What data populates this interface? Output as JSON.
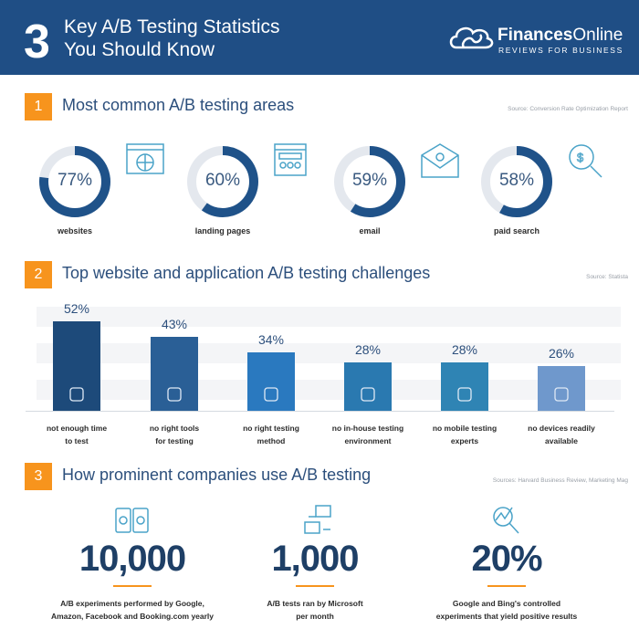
{
  "header": {
    "number": "3",
    "title_line1": "Key A/B Testing Statistics",
    "title_line2": "You Should Know",
    "logo_bold": "Finances",
    "logo_light": "Online",
    "logo_sub": "REVIEWS FOR BUSINESS"
  },
  "section1": {
    "badge": "1",
    "title": "Most common A/B testing areas",
    "source": "Source: Conversion Rate Optimization Report",
    "items": [
      {
        "pct": "77%",
        "value": 77,
        "label": "websites",
        "icon": "globe-browser-icon"
      },
      {
        "pct": "60%",
        "value": 60,
        "label": "landing pages",
        "icon": "webpage-layout-icon"
      },
      {
        "pct": "59%",
        "value": 59,
        "label": "email",
        "icon": "email-envelope-icon"
      },
      {
        "pct": "58%",
        "value": 58,
        "label": "paid search",
        "icon": "dollar-search-icon"
      }
    ]
  },
  "section2": {
    "badge": "2",
    "title": "Top website and application A/B testing challenges",
    "source": "Source: Statista"
  },
  "chart_data": {
    "type": "bar",
    "title": "Top website and application A/B testing challenges",
    "ylabel": "",
    "xlabel": "",
    "ylim": [
      0,
      60
    ],
    "categories": [
      "not enough time to test",
      "no right tools for testing",
      "no right testing method",
      "no in-house testing environment",
      "no mobile testing experts",
      "no devices readily available"
    ],
    "cat_lines": [
      [
        "not enough time",
        "to test"
      ],
      [
        "no right tools",
        "for testing"
      ],
      [
        "no right testing",
        "method"
      ],
      [
        "no in-house testing",
        "environment"
      ],
      [
        "no mobile testing",
        "experts"
      ],
      [
        "no devices readily",
        "available"
      ]
    ],
    "values": [
      52,
      43,
      34,
      28,
      28,
      26
    ],
    "labels": [
      "52%",
      "43%",
      "34%",
      "28%",
      "28%",
      "26%"
    ],
    "colors": [
      "#1d4a7a",
      "#2a5f96",
      "#2a79bf",
      "#2a79b0",
      "#2f84b4",
      "#6f98cc"
    ]
  },
  "section3": {
    "badge": "3",
    "title": "How prominent companies use A/B testing",
    "source": "Sources: Harvard Business Review, Marketing Mag",
    "stats": [
      {
        "value": "10,000",
        "line1": "A/B experiments performed by Google,",
        "line2": "Amazon, Facebook and Booking.com yearly"
      },
      {
        "value": "1,000",
        "line1": "A/B tests ran by Microsoft",
        "line2": "per month"
      },
      {
        "value": "20%",
        "line1": "Google and Bing's controlled",
        "line2": "experiments that yield positive results"
      }
    ]
  }
}
